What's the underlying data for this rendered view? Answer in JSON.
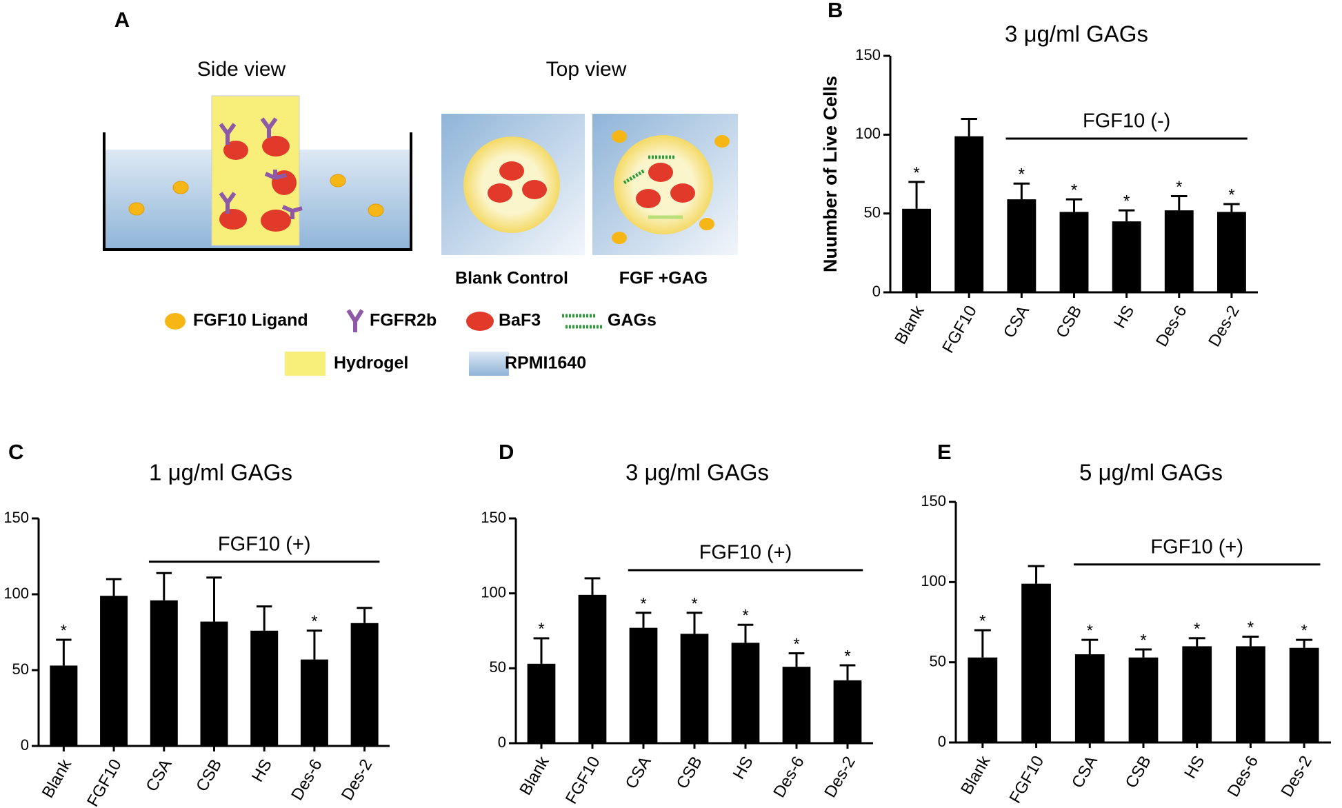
{
  "panel_a": {
    "panel_label": "A",
    "side_view": "Side view",
    "top_view": "Top view",
    "blank_control": "Blank Control",
    "fgf_gag": "FGF +GAG",
    "legend": {
      "ligand": "FGF10 Ligand",
      "receptor": "FGFR2b",
      "cell": "BaF3",
      "gags": "GAGs",
      "hydrogel": "Hydrogel",
      "medium": "RPMI1640"
    }
  },
  "chart_data": [
    {
      "type": "bar",
      "panel_label": "B",
      "title": "3 μg/ml GAGs",
      "y_label": "Nuumber of Live Cells",
      "annotation": "FGF10 (-)",
      "categories": [
        "Blank",
        "FGF10",
        "CSA",
        "CSB",
        "HS",
        "Des-6",
        "Des-2"
      ],
      "values": [
        53,
        99,
        59,
        51,
        45,
        52,
        51
      ],
      "errors": [
        17,
        11,
        10,
        8,
        7,
        9,
        5
      ],
      "significance": [
        "*",
        null,
        "*",
        "*",
        "*",
        "*",
        "*"
      ],
      "color": "#000000",
      "ylim": [
        0,
        150
      ],
      "yticks": [
        0,
        50,
        100,
        150
      ]
    },
    {
      "type": "bar",
      "panel_label": "C",
      "title": "1 μg/ml GAGs",
      "annotation": "FGF10 (+)",
      "categories": [
        "Blank",
        "FGF10",
        "CSA",
        "CSB",
        "HS",
        "Des-6",
        "Des-2"
      ],
      "values": [
        53,
        99,
        96,
        82,
        76,
        57,
        81
      ],
      "errors": [
        17,
        11,
        18,
        29,
        16,
        19,
        10
      ],
      "significance": [
        "*",
        null,
        null,
        null,
        null,
        "*",
        null
      ],
      "color": "#000000",
      "ylim": [
        0,
        150
      ],
      "yticks": [
        0,
        50,
        100,
        150
      ]
    },
    {
      "type": "bar",
      "panel_label": "D",
      "title": "3 μg/ml GAGs",
      "annotation": "FGF10 (+)",
      "categories": [
        "Blank",
        "FGF10",
        "CSA",
        "CSB",
        "HS",
        "Des-6",
        "Des-2"
      ],
      "values": [
        53,
        99,
        77,
        73,
        67,
        51,
        42
      ],
      "errors": [
        17,
        11,
        10,
        14,
        12,
        9,
        10
      ],
      "significance": [
        "*",
        null,
        "*",
        "*",
        "*",
        "*",
        "*"
      ],
      "color": "#000000",
      "ylim": [
        0,
        150
      ],
      "yticks": [
        0,
        50,
        100,
        150
      ]
    },
    {
      "type": "bar",
      "panel_label": "E",
      "title": "5 μg/ml GAGs",
      "annotation": "FGF10 (+)",
      "categories": [
        "Blank",
        "FGF10",
        "CSA",
        "CSB",
        "HS",
        "Des-6",
        "Des-2"
      ],
      "values": [
        53,
        99,
        55,
        53,
        60,
        60,
        59
      ],
      "errors": [
        17,
        11,
        9,
        5,
        5,
        6,
        5
      ],
      "significance": [
        "*",
        null,
        "*",
        "*",
        "*",
        "*",
        "*"
      ],
      "color": "#000000",
      "ylim": [
        0,
        150
      ],
      "yticks": [
        0,
        50,
        100,
        150
      ]
    }
  ]
}
